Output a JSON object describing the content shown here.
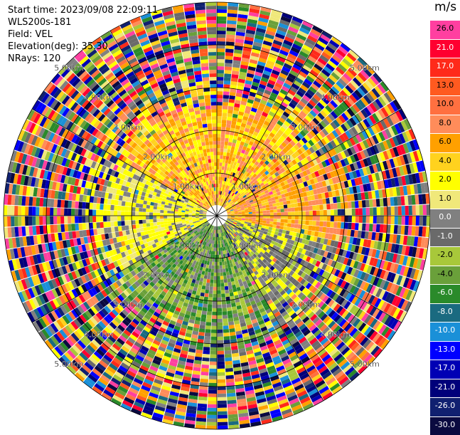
{
  "header": {
    "start_time": "Start time: 2023/09/08 22:09:11",
    "site": "WLS200s-181",
    "field": "Field: VEL",
    "elevation": "Elevation(deg): 35.30",
    "nrays": "NRays: 120"
  },
  "colorbar": {
    "unit": "m/s",
    "levels": [
      {
        "label": "26.0",
        "color": "#ff3fa0"
      },
      {
        "label": "21.0",
        "color": "#ff0030"
      },
      {
        "label": "17.0",
        "color": "#ff2a1a"
      },
      {
        "label": "13.0",
        "color": "#ff5a20"
      },
      {
        "label": "10.0",
        "color": "#ff7040"
      },
      {
        "label": "8.0",
        "color": "#ff8c5a"
      },
      {
        "label": "6.0",
        "color": "#ffa000"
      },
      {
        "label": "4.0",
        "color": "#ffd21e"
      },
      {
        "label": "2.0",
        "color": "#ffff00"
      },
      {
        "label": "1.0",
        "color": "#f0e87a"
      },
      {
        "label": "0.0",
        "color": "#808080"
      },
      {
        "label": "-1.0",
        "color": "#6a6a6a"
      },
      {
        "label": "-2.0",
        "color": "#a8c83a"
      },
      {
        "label": "-4.0",
        "color": "#6aa03a"
      },
      {
        "label": "-6.0",
        "color": "#2a8a2a"
      },
      {
        "label": "-8.0",
        "color": "#1a6a80"
      },
      {
        "label": "-10.0",
        "color": "#1a90d8"
      },
      {
        "label": "-13.0",
        "color": "#0000ff"
      },
      {
        "label": "-17.0",
        "color": "#0000b4"
      },
      {
        "label": "-21.0",
        "color": "#00007a"
      },
      {
        "label": "-26.0",
        "color": "#102070"
      },
      {
        "label": "-30.0",
        "color": "#0a0a40"
      }
    ]
  },
  "range_labels": [
    "1.00km",
    "2.00km",
    "3.00km",
    "4.00km",
    "5.00km"
  ]
}
